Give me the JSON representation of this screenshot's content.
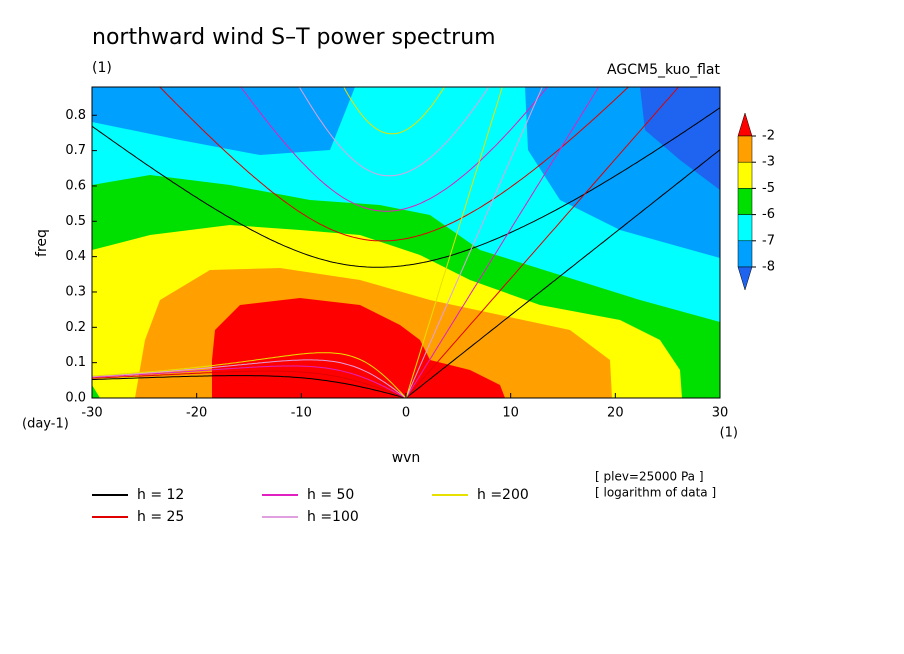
{
  "chart_data": {
    "type": "contour",
    "title": "northward wind S–T power spectrum",
    "subtitle_left": "(1)",
    "subtitle_right": "AGCM5_kuo_flat",
    "ylabel": "freq",
    "yunit": "(day-1)",
    "xlabel": "wvn",
    "xunit": "(1)",
    "notes": [
      "[ plev=25000 Pa ]",
      "[ logarithm of data ]"
    ],
    "xlim": [
      -30,
      30
    ],
    "xticks": [
      -30,
      -20,
      -10,
      0,
      10,
      20,
      30
    ],
    "ylim": [
      0,
      0.88
    ],
    "yticks": [
      {
        "value": 0,
        "label": "0.0"
      },
      {
        "value": 0.1,
        "label": "0.1"
      },
      {
        "value": 0.2,
        "label": "0.2"
      },
      {
        "value": 0.3,
        "label": "0.3"
      },
      {
        "value": 0.4,
        "label": "0.4"
      },
      {
        "value": 0.5,
        "label": "0.5"
      },
      {
        "value": 0.6,
        "label": "0.6"
      },
      {
        "value": 0.7,
        "label": "0.7"
      },
      {
        "value": 0.8,
        "label": "0.8"
      }
    ],
    "colorbar": {
      "levels": [
        -2,
        -3,
        -5,
        -6,
        -7,
        -8
      ],
      "colors": [
        "#ff0000",
        "#ffa000",
        "#ffff00",
        "#00e000",
        "#00ffff",
        "#00a0ff",
        "#1e64f0"
      ]
    },
    "series": [
      {
        "name": "h = 12",
        "h": 12,
        "color": "#000000"
      },
      {
        "name": "h = 25",
        "h": 25,
        "color": "#e00000"
      },
      {
        "name": "h = 50",
        "h": 50,
        "color": "#e020c0"
      },
      {
        "name": "h =100",
        "h": 100,
        "color": "#e0a0e0"
      },
      {
        "name": "h =200",
        "h": 200,
        "color": "#e8e000"
      }
    ]
  }
}
